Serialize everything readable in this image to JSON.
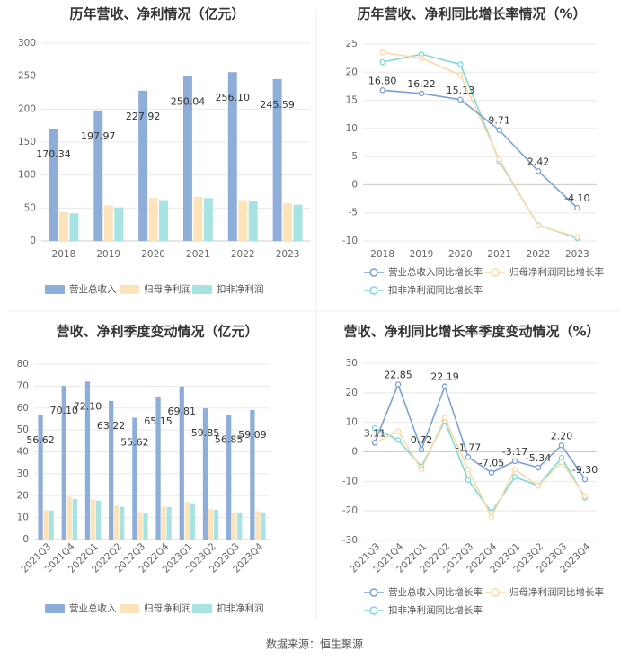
{
  "source": "数据来源：恒生聚源",
  "chart_data": [
    {
      "type": "bar",
      "title": "历年营收、净利情况（亿元）",
      "categories": [
        "2018",
        "2019",
        "2020",
        "2021",
        "2022",
        "2023"
      ],
      "ylim": [
        0,
        300
      ],
      "yticks": [
        0,
        50,
        100,
        150,
        200,
        250,
        300
      ],
      "series": [
        {
          "name": "营业总收入",
          "color": "#8eadd9",
          "values": [
            170.34,
            197.97,
            227.92,
            250.04,
            256.1,
            245.59
          ],
          "labels": [
            "170.34",
            "197.97",
            "227.92",
            "250.04",
            "256.10",
            "245.59"
          ]
        },
        {
          "name": "归母净利润",
          "color": "#fde3ba",
          "values": [
            44,
            54,
            65,
            67,
            62,
            57
          ]
        },
        {
          "name": "扣非净利润",
          "color": "#a8e3e3",
          "values": [
            42,
            51,
            62,
            65,
            60,
            55
          ]
        }
      ]
    },
    {
      "type": "line",
      "title": "历年营收、净利同比增长率情况（%）",
      "categories": [
        "2018",
        "2019",
        "2020",
        "2021",
        "2022",
        "2023"
      ],
      "ylim": [
        -10,
        25
      ],
      "yticks": [
        -10,
        -5,
        0,
        5,
        10,
        15,
        20,
        25
      ],
      "series": [
        {
          "name": "营业总收入同比增长率",
          "color": "#7da0d3",
          "values": [
            16.8,
            16.22,
            15.13,
            9.71,
            2.42,
            -4.1
          ],
          "labels": [
            "16.80",
            "16.22",
            "15.13",
            "9.71",
            "2.42",
            "-4.10"
          ]
        },
        {
          "name": "归母净利润同比增长率",
          "color": "#fcd9a4",
          "values": [
            23.5,
            22.5,
            19.5,
            4.5,
            -7.3,
            -9.3
          ]
        },
        {
          "name": "扣非净利润同比增长率",
          "color": "#7fd8d8",
          "values": [
            21.8,
            23.2,
            21.4,
            4.2,
            -7.2,
            -9.5
          ]
        }
      ]
    },
    {
      "type": "bar",
      "title": "营收、净利季度变动情况（亿元）",
      "categories": [
        "2021Q3",
        "2021Q4",
        "2022Q1",
        "2022Q2",
        "2022Q3",
        "2022Q4",
        "2023Q1",
        "2023Q2",
        "2023Q3",
        "2023Q4"
      ],
      "ylim": [
        0,
        80
      ],
      "yticks": [
        0,
        10,
        20,
        30,
        40,
        50,
        60,
        70,
        80
      ],
      "series": [
        {
          "name": "营业总收入",
          "color": "#8eadd9",
          "values": [
            56.62,
            70.1,
            72.1,
            63.22,
            55.62,
            65.15,
            69.81,
            59.85,
            56.85,
            59.09
          ],
          "labels": [
            "56.62",
            "70.10",
            "72.10",
            "63.22",
            "55.62",
            "65.15",
            "69.81",
            "59.85",
            "56.85",
            "59.09"
          ]
        },
        {
          "name": "归母净利润",
          "color": "#fde3ba",
          "values": [
            13.5,
            19.5,
            18.3,
            15.5,
            12.5,
            15.2,
            17.1,
            13.9,
            12.4,
            12.9
          ]
        },
        {
          "name": "扣非净利润",
          "color": "#a8e3e3",
          "values": [
            13.2,
            18.5,
            17.8,
            15.0,
            12.0,
            14.8,
            16.5,
            13.5,
            12.0,
            12.4
          ]
        }
      ]
    },
    {
      "type": "line",
      "title": "营收、净利同比增长率季度变动情况（%）",
      "categories": [
        "2021Q3",
        "2021Q4",
        "2022Q1",
        "2022Q2",
        "2022Q3",
        "2022Q4",
        "2023Q1",
        "2023Q2",
        "2023Q3",
        "2023Q4"
      ],
      "ylim": [
        -30,
        30
      ],
      "yticks": [
        -30,
        -20,
        -10,
        0,
        10,
        20,
        30
      ],
      "series": [
        {
          "name": "营业总收入同比增长率",
          "color": "#7da0d3",
          "values": [
            3.11,
            22.85,
            0.72,
            22.19,
            -1.77,
            -7.05,
            -3.17,
            -5.34,
            2.2,
            -9.3
          ],
          "labels": [
            "3.11",
            "22.85",
            "0.72",
            "22.19",
            "-1.77",
            "-7.05",
            "-3.17",
            "-5.34",
            "2.20",
            "-9.30"
          ]
        },
        {
          "name": "归母净利润同比增长率",
          "color": "#fcd9a4",
          "values": [
            3.0,
            7.0,
            -6.0,
            11.5,
            -6.0,
            -22.0,
            -6.0,
            -11.5,
            -3.5,
            -15.0
          ]
        },
        {
          "name": "扣非净利润同比增长率",
          "color": "#7fd8d8",
          "values": [
            8.0,
            4.0,
            -5.0,
            10.5,
            -9.5,
            -20.5,
            -8.5,
            -11.5,
            -2.0,
            -15.5
          ]
        }
      ]
    }
  ]
}
